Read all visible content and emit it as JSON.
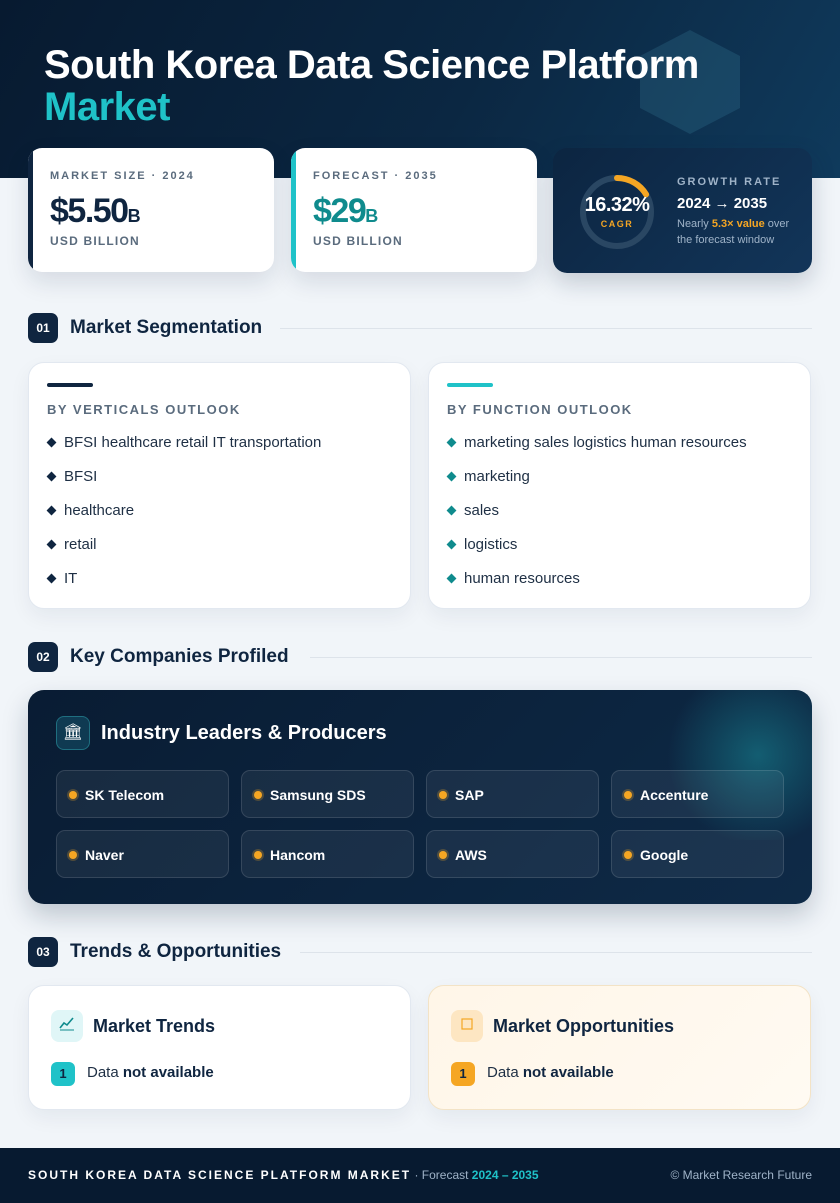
{
  "header": {
    "title_line1": "South Korea Data Science Platform",
    "title_line2": "Market"
  },
  "stats": {
    "market_size": {
      "label": "MARKET SIZE · 2024",
      "value": "$5.50",
      "unit_suffix": "B",
      "unit": "USD BILLION"
    },
    "forecast": {
      "label": "FORECAST · 2035",
      "value": "$29",
      "unit_suffix": "B",
      "unit": "USD BILLION"
    },
    "growth": {
      "cagr_value": "16.32%",
      "cagr_label": "CAGR",
      "cagr_ring_fraction": 0.1632,
      "label": "GROWTH RATE",
      "range": "2024 → 2035",
      "note_prefix": "Nearly ",
      "note_highlight": "5.3× value",
      "note_suffix": " over the forecast window"
    }
  },
  "sections": {
    "segmentation": {
      "num": "01",
      "title": "Market Segmentation"
    },
    "companies": {
      "num": "02",
      "title": "Key Companies Profiled"
    },
    "trends": {
      "num": "03",
      "title": "Trends & Opportunities"
    }
  },
  "segmentation": {
    "verticals": {
      "heading": "BY VERTICALS OUTLOOK",
      "items": [
        "BFSI healthcare retail IT transportation",
        "BFSI",
        "healthcare",
        "retail",
        "IT"
      ]
    },
    "function": {
      "heading": "BY FUNCTION OUTLOOK",
      "items": [
        "marketing sales logistics human resources",
        "marketing",
        "sales",
        "logistics",
        "human resources"
      ]
    }
  },
  "companies": {
    "panel_title": "Industry Leaders & Producers",
    "icon": "bank-icon",
    "list": [
      "SK Telecom",
      "Samsung SDS",
      "SAP",
      "Accenture",
      "Naver",
      "Hancom",
      "AWS",
      "Google"
    ]
  },
  "trends": {
    "market_trends": {
      "title": "Market Trends",
      "icon": "chart-line-icon",
      "num": "1",
      "text_prefix": "Data ",
      "text_bold": "not available"
    },
    "market_opportunities": {
      "title": "Market Opportunities",
      "icon": "lightbulb-icon",
      "num": "1",
      "text_prefix": "Data ",
      "text_bold": "not available"
    }
  },
  "footer": {
    "brand": "SOUTH KOREA DATA SCIENCE PLATFORM MARKET",
    "forecast_prefix": " · Forecast ",
    "forecast_range": "2024 – 2035",
    "copyright": "© Market Research Future"
  },
  "colors": {
    "navy": "#0f2540",
    "teal": "#1fc2c8",
    "deep_teal": "#0f8b8d",
    "amber": "#f5a623"
  }
}
